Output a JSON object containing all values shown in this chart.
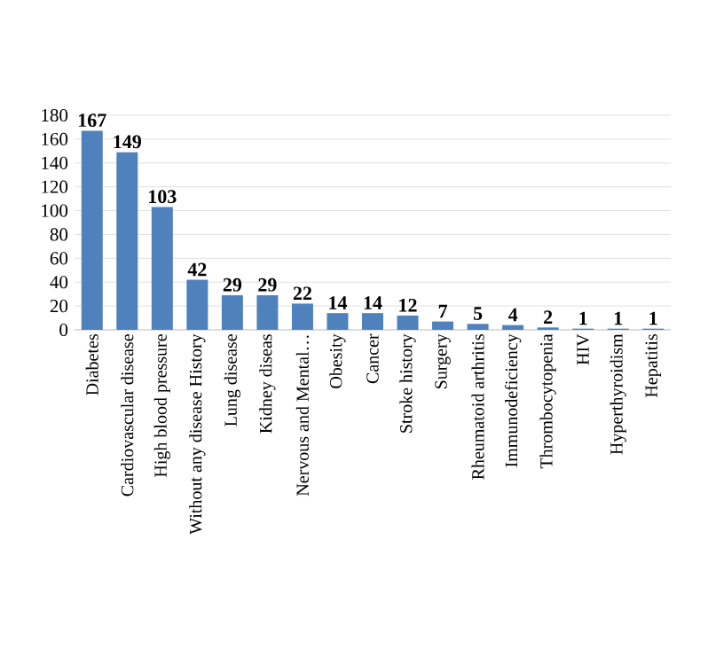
{
  "chart_data": {
    "type": "bar",
    "categories": [
      "Diabetes",
      "Cardiovascular disease",
      "High blood pressure",
      "Without any disease History",
      "Lung disease",
      "Kidney diseas",
      "Nervous and Mental…",
      "Obesity",
      "Cancer",
      "Stroke history",
      "Surgery",
      "Rheumatoid arthritis",
      "Immunodeficiency",
      "Thrombocytopenia",
      "HIV",
      "Hyperthyroidism",
      "Hepatitis"
    ],
    "values": [
      167,
      149,
      103,
      42,
      29,
      29,
      22,
      14,
      14,
      12,
      7,
      5,
      4,
      2,
      1,
      1,
      1
    ],
    "color": "#4f81bd",
    "ylim": [
      0,
      180
    ],
    "yticks": [
      0,
      20,
      40,
      60,
      80,
      100,
      120,
      140,
      160,
      180
    ],
    "grid": "y",
    "value_labels": [
      "167",
      "149",
      "103",
      "42",
      "29",
      "29",
      "22",
      "14",
      "14",
      "12",
      "7",
      "5",
      "4",
      "2",
      "1",
      "1",
      "1"
    ]
  }
}
